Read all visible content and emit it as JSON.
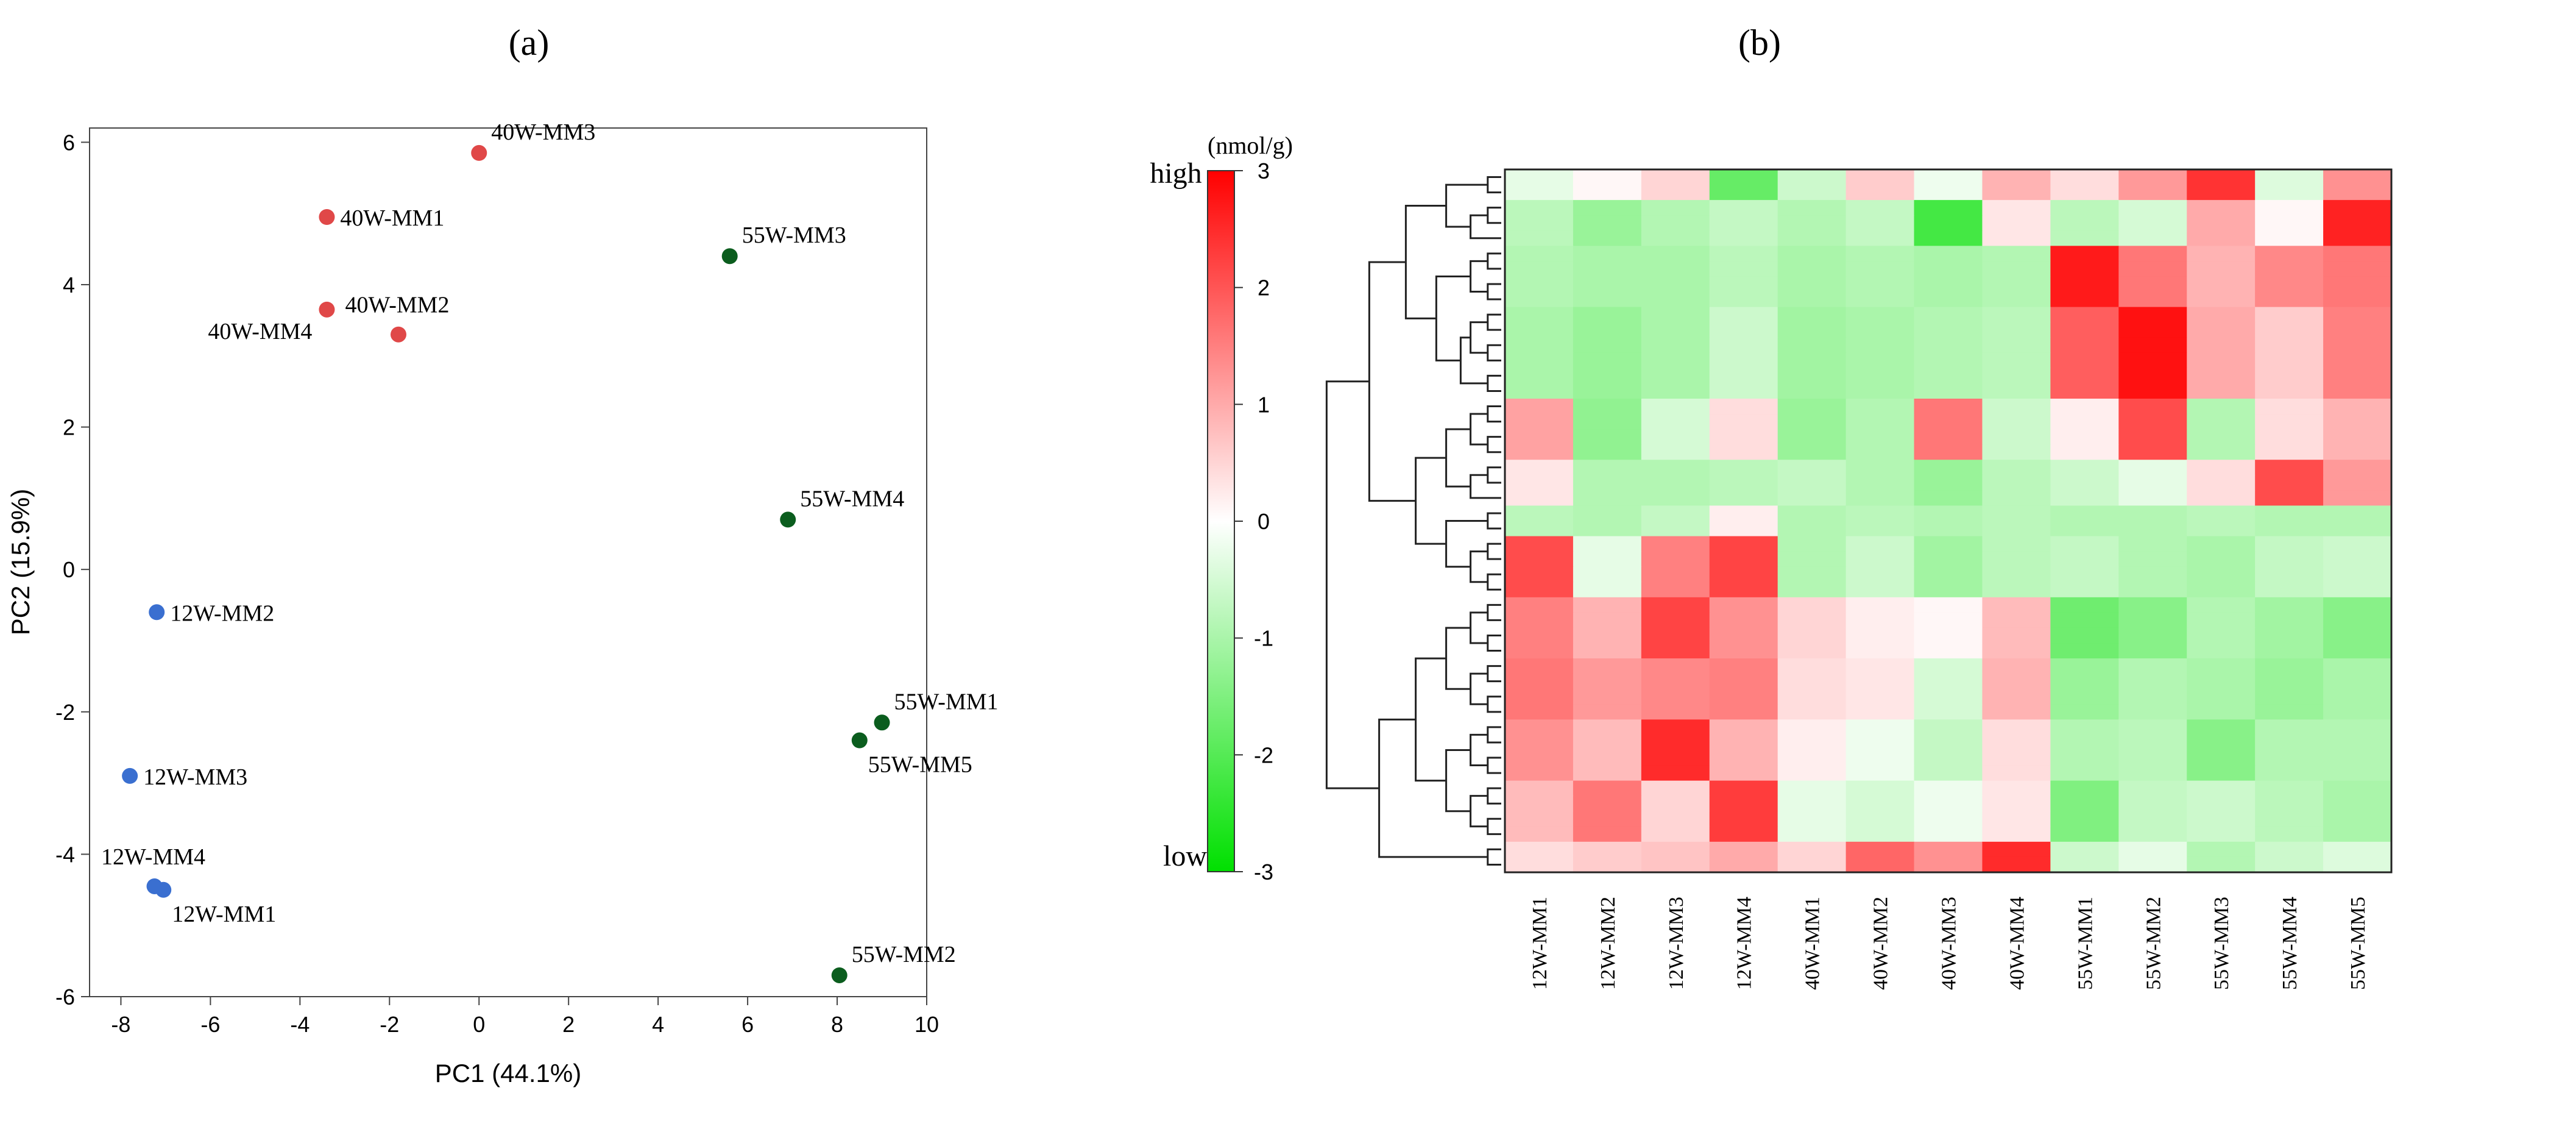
{
  "panels": {
    "a": "(a)",
    "b": "(b)"
  },
  "colors": {
    "group_12W": "#3a6fd0",
    "group_40W": "#e04848",
    "group_55W": "#0b5d1e",
    "heat_high": "#ff0000",
    "heat_mid": "#ffffff",
    "heat_low": "#00e000"
  },
  "chart_data": [
    {
      "type": "scatter",
      "xlabel": "PC1 (44.1%)",
      "ylabel": "PC2 (15.9%)",
      "xlim": [
        -8.7,
        10
      ],
      "ylim": [
        -6,
        6.2
      ],
      "xticks": [
        -8,
        -6,
        -4,
        -2,
        0,
        2,
        4,
        6,
        8,
        10
      ],
      "yticks": [
        -6,
        -4,
        -2,
        0,
        2,
        4,
        6
      ],
      "grid": false,
      "points": [
        {
          "label": "40W-MM3",
          "group": "40W",
          "x": 0.0,
          "y": 5.85,
          "labelPos": "ne"
        },
        {
          "label": "40W-MM1",
          "group": "40W",
          "x": -3.4,
          "y": 4.95,
          "labelPos": "e"
        },
        {
          "label": "40W-MM4",
          "group": "40W",
          "x": -3.4,
          "y": 3.65,
          "labelPos": "sw"
        },
        {
          "label": "40W-MM2",
          "group": "40W",
          "x": -1.8,
          "y": 3.3,
          "labelPos": "n"
        },
        {
          "label": "55W-MM3",
          "group": "55W",
          "x": 5.6,
          "y": 4.4,
          "labelPos": "ne"
        },
        {
          "label": "55W-MM4",
          "group": "55W",
          "x": 6.9,
          "y": 0.7,
          "labelPos": "ne"
        },
        {
          "label": "55W-MM1",
          "group": "55W",
          "x": 9.0,
          "y": -2.15,
          "labelPos": "ne"
        },
        {
          "label": "55W-MM5",
          "group": "55W",
          "x": 8.5,
          "y": -2.4,
          "labelPos": "se"
        },
        {
          "label": "55W-MM2",
          "group": "55W",
          "x": 8.05,
          "y": -5.7,
          "labelPos": "ne"
        },
        {
          "label": "12W-MM2",
          "group": "12W",
          "x": -7.2,
          "y": -0.6,
          "labelPos": "e"
        },
        {
          "label": "12W-MM3",
          "group": "12W",
          "x": -7.8,
          "y": -2.9,
          "labelPos": "e"
        },
        {
          "label": "12W-MM4",
          "group": "12W",
          "x": -7.25,
          "y": -4.45,
          "labelPos": "n"
        },
        {
          "label": "12W-MM1",
          "group": "12W",
          "x": -7.05,
          "y": -4.5,
          "labelPos": "se"
        }
      ]
    },
    {
      "type": "heatmap",
      "colorbar_title": "(nmol/g)",
      "colorbar_high": "high",
      "colorbar_low": "low",
      "colorbar_range": [
        -3,
        3
      ],
      "colorbar_ticks": [
        3,
        2,
        1,
        0,
        -1,
        -2,
        -3
      ],
      "columns": [
        "12W-MM1",
        "12W-MM2",
        "12W-MM3",
        "12W-MM4",
        "40W-MM1",
        "40W-MM2",
        "40W-MM3",
        "40W-MM4",
        "55W-MM1",
        "55W-MM2",
        "55W-MM3",
        "55W-MM4",
        "55W-MM5"
      ],
      "row_blocks": [
        {
          "rows": 2,
          "values": [
            -0.3,
            0.1,
            0.5,
            -1.8,
            -0.6,
            0.6,
            -0.2,
            0.9,
            0.4,
            1.2,
            2.4,
            -0.4,
            1.3
          ]
        },
        {
          "rows": 3,
          "values": [
            -0.8,
            -1.2,
            -0.9,
            -0.7,
            -0.9,
            -0.7,
            -2.2,
            0.3,
            -0.8,
            -0.5,
            1.0,
            0.1,
            2.6
          ]
        },
        {
          "rows": 4,
          "values": [
            -0.9,
            -1.0,
            -1.0,
            -0.8,
            -1.0,
            -0.9,
            -1.0,
            -0.9,
            2.7,
            1.6,
            0.9,
            1.4,
            1.6
          ]
        },
        {
          "rows": 6,
          "values": [
            -1.0,
            -1.2,
            -1.0,
            -0.6,
            -1.1,
            -1.0,
            -0.9,
            -0.8,
            1.9,
            2.8,
            1.0,
            0.6,
            1.5
          ]
        },
        {
          "rows": 4,
          "values": [
            1.1,
            -1.3,
            -0.5,
            0.4,
            -1.2,
            -0.9,
            1.6,
            -0.6,
            0.2,
            2.1,
            -0.9,
            0.4,
            0.9
          ]
        },
        {
          "rows": 3,
          "values": [
            0.3,
            -0.9,
            -0.9,
            -0.8,
            -0.7,
            -0.9,
            -1.2,
            -0.8,
            -0.6,
            -0.3,
            0.4,
            2.1,
            1.2
          ]
        },
        {
          "rows": 2,
          "values": [
            -0.8,
            -0.9,
            -0.7,
            0.2,
            -0.9,
            -0.8,
            -0.9,
            -0.8,
            -0.9,
            -0.9,
            -0.8,
            -0.9,
            -0.9
          ]
        },
        {
          "rows": 4,
          "values": [
            2.1,
            -0.3,
            1.5,
            2.2,
            -0.9,
            -0.6,
            -1.1,
            -0.8,
            -0.7,
            -0.9,
            -1.0,
            -0.7,
            -0.6
          ]
        },
        {
          "rows": 4,
          "values": [
            1.5,
            0.9,
            2.2,
            1.3,
            0.5,
            0.2,
            0.1,
            0.8,
            -1.7,
            -1.4,
            -0.9,
            -1.1,
            -1.4
          ]
        },
        {
          "rows": 4,
          "values": [
            1.6,
            1.2,
            1.4,
            1.5,
            0.4,
            0.3,
            -0.5,
            0.9,
            -1.2,
            -0.9,
            -1.0,
            -1.2,
            -1.0
          ]
        },
        {
          "rows": 4,
          "values": [
            1.3,
            0.8,
            2.5,
            0.9,
            0.2,
            -0.2,
            -0.7,
            0.4,
            -0.9,
            -0.8,
            -1.4,
            -0.9,
            -0.9
          ]
        },
        {
          "rows": 4,
          "values": [
            0.8,
            1.6,
            0.5,
            2.3,
            -0.3,
            -0.5,
            -0.2,
            0.3,
            -1.5,
            -0.7,
            -0.6,
            -0.8,
            -1.0
          ]
        },
        {
          "rows": 2,
          "values": [
            0.4,
            0.6,
            0.7,
            1.0,
            0.5,
            1.8,
            1.3,
            2.5,
            -0.6,
            -0.3,
            -0.9,
            -0.6,
            -0.4
          ]
        }
      ]
    }
  ]
}
